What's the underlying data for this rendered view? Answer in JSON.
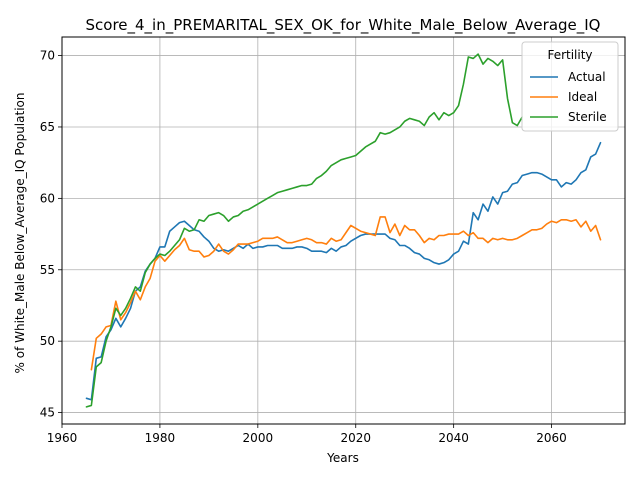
{
  "chart_data": {
    "type": "line",
    "title": "Score_4_in_PREMARITAL_SEX_OK_for_White_Male_Below_Average_IQ",
    "xlabel": "Years",
    "ylabel": "% of White_Male Below_Average_IQ Population",
    "xlim": [
      1960,
      2075
    ],
    "ylim": [
      44.2,
      71.3
    ],
    "xticks": [
      1960,
      1980,
      2000,
      2020,
      2040,
      2060
    ],
    "yticks": [
      45,
      50,
      55,
      60,
      65,
      70
    ],
    "grid": true,
    "legend": {
      "title": "Fertility",
      "placement": "top-right"
    },
    "series": [
      {
        "name": "Actual",
        "color": "#1f77b4",
        "x": [
          1965,
          1966,
          1967,
          1968,
          1969,
          1970,
          1971,
          1972,
          1973,
          1974,
          1975,
          1976,
          1977,
          1978,
          1979,
          1980,
          1981,
          1982,
          1983,
          1984,
          1985,
          1986,
          1987,
          1988,
          1989,
          1990,
          1991,
          1992,
          1993,
          1994,
          1995,
          1996,
          1997,
          1998,
          1999,
          2000,
          2001,
          2002,
          2003,
          2004,
          2005,
          2006,
          2007,
          2008,
          2009,
          2010,
          2011,
          2012,
          2013,
          2014,
          2015,
          2016,
          2017,
          2018,
          2019,
          2020,
          2021,
          2022,
          2023,
          2024,
          2025,
          2026,
          2027,
          2028,
          2029,
          2030,
          2031,
          2032,
          2033,
          2034,
          2035,
          2036,
          2037,
          2038,
          2039,
          2040,
          2041,
          2042,
          2043,
          2044,
          2045,
          2046,
          2047,
          2048,
          2049,
          2050,
          2051,
          2052,
          2053,
          2054,
          2055,
          2056,
          2057,
          2058,
          2059,
          2060,
          2061,
          2062,
          2063,
          2064,
          2065,
          2066,
          2067,
          2068,
          2069,
          2070
        ],
        "y": [
          46.0,
          45.9,
          48.8,
          48.9,
          50.3,
          50.8,
          51.6,
          51.0,
          51.6,
          52.3,
          53.5,
          53.8,
          54.9,
          55.4,
          55.8,
          56.6,
          56.6,
          57.7,
          58.0,
          58.3,
          58.4,
          58.1,
          57.8,
          57.7,
          57.3,
          57.0,
          56.5,
          56.3,
          56.4,
          56.3,
          56.5,
          56.7,
          56.5,
          56.8,
          56.5,
          56.6,
          56.6,
          56.7,
          56.7,
          56.7,
          56.5,
          56.5,
          56.5,
          56.6,
          56.6,
          56.5,
          56.3,
          56.3,
          56.3,
          56.2,
          56.5,
          56.3,
          56.6,
          56.7,
          57.0,
          57.2,
          57.4,
          57.5,
          57.5,
          57.5,
          57.5,
          57.5,
          57.2,
          57.1,
          56.7,
          56.7,
          56.5,
          56.2,
          56.1,
          55.8,
          55.7,
          55.5,
          55.4,
          55.5,
          55.7,
          56.1,
          56.3,
          57.0,
          56.8,
          59.0,
          58.5,
          59.6,
          59.1,
          60.1,
          59.6,
          60.4,
          60.5,
          61.0,
          61.1,
          61.6,
          61.7,
          61.8,
          61.8,
          61.7,
          61.5,
          61.3,
          61.3,
          60.8,
          61.1,
          61.0,
          61.3,
          61.8,
          62.0,
          62.9,
          63.1,
          63.9
        ]
      },
      {
        "name": "Ideal",
        "color": "#ff7f0e",
        "x": [
          1966,
          1967,
          1968,
          1969,
          1970,
          1971,
          1972,
          1973,
          1974,
          1975,
          1976,
          1977,
          1978,
          1979,
          1980,
          1981,
          1982,
          1983,
          1984,
          1985,
          1986,
          1987,
          1988,
          1989,
          1990,
          1991,
          1992,
          1993,
          1994,
          1995,
          1996,
          1997,
          1998,
          1999,
          2000,
          2001,
          2002,
          2003,
          2004,
          2005,
          2006,
          2007,
          2008,
          2009,
          2010,
          2011,
          2012,
          2013,
          2014,
          2015,
          2016,
          2017,
          2018,
          2019,
          2020,
          2021,
          2022,
          2023,
          2024,
          2025,
          2026,
          2027,
          2028,
          2029,
          2030,
          2031,
          2032,
          2033,
          2034,
          2035,
          2036,
          2037,
          2038,
          2039,
          2040,
          2041,
          2042,
          2043,
          2044,
          2045,
          2046,
          2047,
          2048,
          2049,
          2050,
          2051,
          2052,
          2053,
          2054,
          2055,
          2056,
          2057,
          2058,
          2059,
          2060,
          2061,
          2062,
          2063,
          2064,
          2065,
          2066,
          2067,
          2068,
          2069,
          2070
        ],
        "y": [
          48.0,
          50.2,
          50.5,
          51.0,
          51.1,
          52.8,
          51.5,
          52.0,
          52.7,
          53.5,
          52.9,
          53.8,
          54.4,
          55.6,
          56.0,
          55.6,
          56.0,
          56.4,
          56.7,
          57.2,
          56.4,
          56.3,
          56.3,
          55.9,
          56.0,
          56.3,
          56.8,
          56.3,
          56.1,
          56.4,
          56.8,
          56.8,
          56.8,
          56.9,
          57.0,
          57.2,
          57.2,
          57.2,
          57.3,
          57.1,
          56.9,
          56.9,
          57.0,
          57.1,
          57.2,
          57.1,
          56.9,
          56.9,
          56.8,
          57.2,
          57.0,
          57.1,
          57.6,
          58.1,
          57.9,
          57.7,
          57.6,
          57.5,
          57.4,
          58.7,
          58.7,
          57.6,
          58.2,
          57.4,
          58.1,
          57.8,
          57.8,
          57.4,
          56.9,
          57.2,
          57.1,
          57.4,
          57.4,
          57.5,
          57.5,
          57.5,
          57.7,
          57.4,
          57.6,
          57.2,
          57.2,
          56.9,
          57.2,
          57.1,
          57.2,
          57.1,
          57.1,
          57.2,
          57.4,
          57.6,
          57.8,
          57.8,
          57.9,
          58.2,
          58.4,
          58.3,
          58.5,
          58.5,
          58.4,
          58.5,
          58.0,
          58.4,
          57.7,
          58.1,
          57.1
        ]
      },
      {
        "name": "Sterile",
        "color": "#2ca02c",
        "x": [
          1965,
          1966,
          1967,
          1968,
          1969,
          1970,
          1971,
          1972,
          1973,
          1974,
          1975,
          1976,
          1977,
          1978,
          1979,
          1980,
          1981,
          1982,
          1983,
          1984,
          1985,
          1986,
          1987,
          1988,
          1989,
          1990,
          1991,
          1992,
          1993,
          1994,
          1995,
          1996,
          1997,
          1998,
          1999,
          2000,
          2001,
          2002,
          2003,
          2004,
          2005,
          2006,
          2007,
          2008,
          2009,
          2010,
          2011,
          2012,
          2013,
          2014,
          2015,
          2016,
          2017,
          2018,
          2019,
          2020,
          2021,
          2022,
          2023,
          2024,
          2025,
          2026,
          2027,
          2028,
          2029,
          2030,
          2031,
          2032,
          2033,
          2034,
          2035,
          2036,
          2037,
          2038,
          2039,
          2040,
          2041,
          2042,
          2043,
          2044,
          2045,
          2046,
          2047,
          2048,
          2049,
          2050,
          2051,
          2052,
          2053,
          2054
        ],
        "y": [
          45.4,
          45.5,
          48.2,
          48.5,
          50.0,
          51.0,
          52.3,
          51.8,
          52.3,
          53.0,
          53.8,
          53.5,
          54.8,
          55.4,
          55.8,
          56.1,
          56.0,
          56.3,
          56.7,
          57.1,
          57.9,
          57.7,
          57.8,
          58.5,
          58.4,
          58.8,
          58.9,
          59.0,
          58.8,
          58.4,
          58.7,
          58.8,
          59.1,
          59.2,
          59.4,
          59.6,
          59.8,
          60.0,
          60.2,
          60.4,
          60.5,
          60.6,
          60.7,
          60.8,
          60.9,
          60.9,
          61.0,
          61.4,
          61.6,
          61.9,
          62.3,
          62.5,
          62.7,
          62.8,
          62.9,
          63.0,
          63.3,
          63.6,
          63.8,
          64.0,
          64.6,
          64.5,
          64.6,
          64.8,
          65.0,
          65.4,
          65.6,
          65.5,
          65.4,
          65.1,
          65.7,
          66.0,
          65.5,
          66.0,
          65.8,
          66.0,
          66.5,
          68.0,
          69.9,
          69.8,
          70.1,
          69.4,
          69.8,
          69.6,
          69.3,
          69.7,
          67.0,
          65.3,
          65.1,
          65.7
        ]
      }
    ]
  }
}
